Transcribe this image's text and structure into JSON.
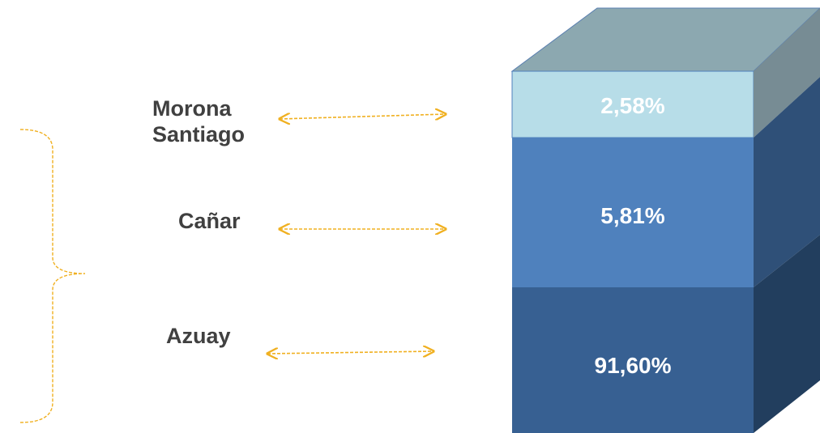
{
  "segments": [
    {
      "label": "Morona Santiago",
      "value": "2,58%"
    },
    {
      "label": "Cañar",
      "value": "5,81%"
    },
    {
      "label": "Azuay",
      "value": "91,60%"
    }
  ]
}
